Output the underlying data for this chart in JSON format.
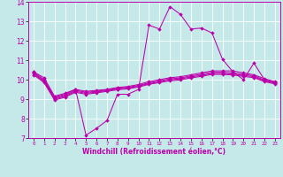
{
  "xlabel": "Windchill (Refroidissement éolien,°C)",
  "xlim": [
    -0.5,
    23.5
  ],
  "ylim": [
    7,
    14
  ],
  "yticks": [
    7,
    8,
    9,
    10,
    11,
    12,
    13,
    14
  ],
  "xticks": [
    0,
    1,
    2,
    3,
    4,
    5,
    6,
    7,
    8,
    9,
    10,
    11,
    12,
    13,
    14,
    15,
    16,
    17,
    18,
    19,
    20,
    21,
    22,
    23
  ],
  "bg_color": "#c5e8e8",
  "grid_color": "#ffffff",
  "line_color": "#bb00aa",
  "lines": [
    {
      "x": [
        0,
        1,
        2,
        3,
        4,
        5,
        6,
        7,
        8,
        9,
        10,
        11,
        12,
        13,
        14,
        15,
        16,
        17,
        18,
        19,
        20,
        21,
        22,
        23
      ],
      "y": [
        10.4,
        10.1,
        9.15,
        9.3,
        9.5,
        7.15,
        7.5,
        7.9,
        9.25,
        9.25,
        9.5,
        12.8,
        12.6,
        13.75,
        13.35,
        12.6,
        12.65,
        12.4,
        11.05,
        10.4,
        10.0,
        10.85,
        10.0,
        9.85
      ]
    },
    {
      "x": [
        0,
        1,
        2,
        3,
        4,
        5,
        6,
        7,
        8,
        9,
        10,
        11,
        12,
        13,
        14,
        15,
        16,
        17,
        18,
        19,
        20,
        21,
        22,
        23
      ],
      "y": [
        10.4,
        10.0,
        9.1,
        9.25,
        9.5,
        9.4,
        9.45,
        9.5,
        9.6,
        9.65,
        9.75,
        9.9,
        10.0,
        10.1,
        10.15,
        10.25,
        10.35,
        10.45,
        10.45,
        10.45,
        10.35,
        10.25,
        10.05,
        9.9
      ]
    },
    {
      "x": [
        0,
        1,
        2,
        3,
        4,
        5,
        6,
        7,
        8,
        9,
        10,
        11,
        12,
        13,
        14,
        15,
        16,
        17,
        18,
        19,
        20,
        21,
        22,
        23
      ],
      "y": [
        10.35,
        9.95,
        9.05,
        9.2,
        9.45,
        9.35,
        9.4,
        9.48,
        9.56,
        9.61,
        9.7,
        9.84,
        9.94,
        10.04,
        10.09,
        10.19,
        10.28,
        10.38,
        10.38,
        10.35,
        10.28,
        10.2,
        9.98,
        9.85
      ]
    },
    {
      "x": [
        0,
        1,
        2,
        3,
        4,
        5,
        6,
        7,
        8,
        9,
        10,
        11,
        12,
        13,
        14,
        15,
        16,
        17,
        18,
        19,
        20,
        21,
        22,
        23
      ],
      "y": [
        10.3,
        9.9,
        9.0,
        9.15,
        9.4,
        9.3,
        9.36,
        9.44,
        9.52,
        9.57,
        9.66,
        9.8,
        9.89,
        9.99,
        10.04,
        10.14,
        10.22,
        10.32,
        10.32,
        10.29,
        10.22,
        10.15,
        9.94,
        9.82
      ]
    },
    {
      "x": [
        0,
        1,
        2,
        3,
        4,
        5,
        6,
        7,
        8,
        9,
        10,
        11,
        12,
        13,
        14,
        15,
        16,
        17,
        18,
        19,
        20,
        21,
        22,
        23
      ],
      "y": [
        10.25,
        9.85,
        8.95,
        9.1,
        9.35,
        9.25,
        9.32,
        9.4,
        9.48,
        9.53,
        9.62,
        9.76,
        9.85,
        9.94,
        9.99,
        10.09,
        10.17,
        10.27,
        10.27,
        10.24,
        10.17,
        10.1,
        9.9,
        9.78
      ]
    }
  ]
}
